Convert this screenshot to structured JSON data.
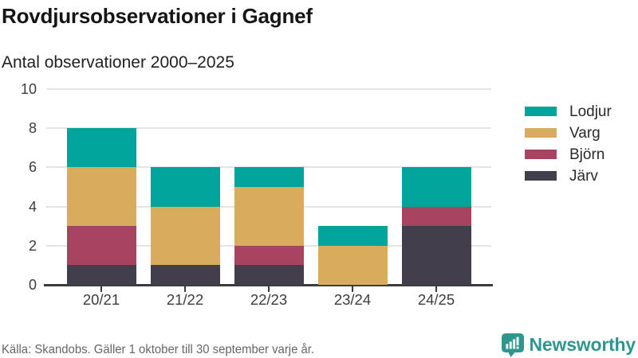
{
  "page": {
    "title": "Rovdjursobservationer i Gagnef",
    "subtitle": "Antal observationer 2000–2025",
    "source_note": "Källa: Skandobs. Gäller 1 oktober till 30 september varje år.",
    "brand": {
      "name": "Newsworthy",
      "icon": "newsworthy-speech-bubble-bar-chart-icon",
      "color": "#2f968e"
    }
  },
  "colors": {
    "background": "#ffffff",
    "gridline": "#e4e4e4",
    "axis": "#3a3a42",
    "tick_label": "#3d3d3d",
    "title_text": "#151515",
    "source_text": "#666666"
  },
  "chart_data": {
    "type": "bar",
    "stacked": true,
    "title": "Rovdjursobservationer i Gagnef",
    "subtitle": "Antal observationer 2000–2025",
    "xlabel": "",
    "ylabel": "",
    "categories": [
      "20/21",
      "21/22",
      "22/23",
      "23/24",
      "24/25"
    ],
    "series": [
      {
        "name": "Lodjur",
        "color": "#00a49b",
        "values": [
          2,
          2,
          1,
          1,
          2
        ]
      },
      {
        "name": "Varg",
        "color": "#d9ac5c",
        "values": [
          3,
          3,
          3,
          2,
          0
        ]
      },
      {
        "name": "Björn",
        "color": "#a7445f",
        "values": [
          2,
          0,
          1,
          0,
          1
        ]
      },
      {
        "name": "Järv",
        "color": "#423e4b",
        "values": [
          1,
          1,
          1,
          0,
          3
        ]
      }
    ],
    "stack_order_bottom_to_top": [
      "Järv",
      "Björn",
      "Varg",
      "Lodjur"
    ],
    "totals": [
      8,
      6,
      6,
      3,
      6
    ],
    "ylim": [
      0,
      10
    ],
    "yticks": [
      0,
      2,
      4,
      6,
      8,
      10
    ],
    "grid": true,
    "legend_position": "right"
  }
}
